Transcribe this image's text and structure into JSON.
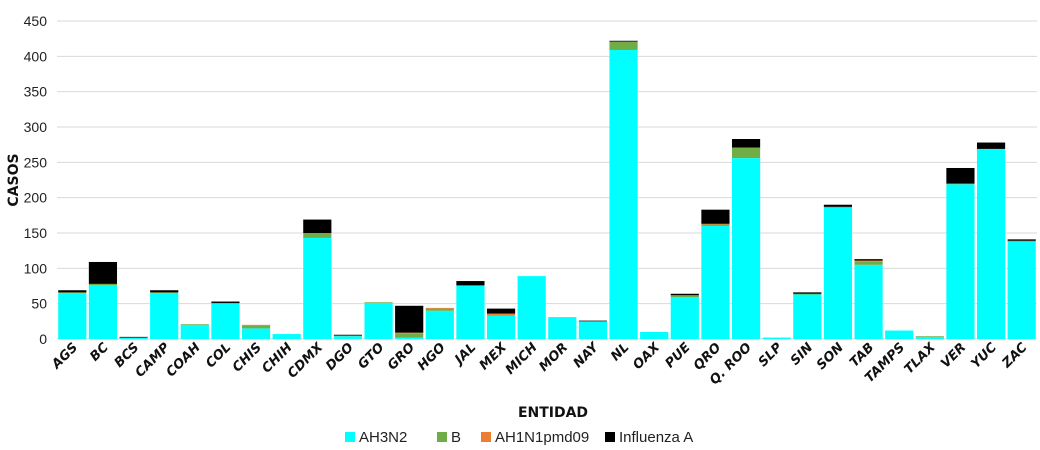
{
  "chart_data": {
    "type": "bar",
    "stacked": true,
    "title": "",
    "xlabel": "ENTIDAD",
    "ylabel": "CASOS",
    "ylim": [
      0,
      450
    ],
    "yticks": [
      0,
      50,
      100,
      150,
      200,
      250,
      300,
      350,
      400,
      450
    ],
    "grid": true,
    "legend_position": "bottom",
    "categories": [
      "AGS",
      "BC",
      "BCS",
      "CAMP",
      "COAH",
      "COL",
      "CHIS",
      "CHIH",
      "CDMX",
      "DGO",
      "GTO",
      "GRO",
      "HGO",
      "JAL",
      "MEX",
      "MICH",
      "MOR",
      "NAY",
      "NL",
      "OAX",
      "PUE",
      "QRO",
      "Q. ROO",
      "SLP",
      "SIN",
      "SON",
      "TAB",
      "TAMPS",
      "TLAX",
      "VER",
      "YUC",
      "ZAC"
    ],
    "series": [
      {
        "name": "AH3N2",
        "color": "#00FFFF",
        "values": [
          65,
          76,
          2,
          65,
          20,
          50,
          15,
          7,
          143,
          4,
          51,
          2,
          40,
          75,
          33,
          89,
          31,
          25,
          409,
          10,
          59,
          160,
          256,
          2,
          63,
          186,
          105,
          12,
          3,
          219,
          269,
          138
        ]
      },
      {
        "name": "B",
        "color": "#70AD47",
        "values": [
          1,
          2,
          0,
          1,
          1,
          1,
          4,
          0,
          7,
          1,
          1,
          6,
          3,
          1,
          1,
          0,
          0,
          0,
          12,
          0,
          3,
          2,
          15,
          0,
          1,
          1,
          5,
          0,
          1,
          1,
          0,
          1
        ]
      },
      {
        "name": "AH1N1pmd09",
        "color": "#ED7D31",
        "values": [
          0,
          0,
          0,
          0,
          0,
          0,
          1,
          0,
          0,
          0,
          0,
          1,
          1,
          0,
          2,
          0,
          0,
          0,
          0,
          0,
          0,
          1,
          0,
          0,
          0,
          0,
          1,
          0,
          0,
          0,
          0,
          0
        ]
      },
      {
        "name": "Influenza A",
        "color": "#000000",
        "values": [
          3,
          31,
          1,
          3,
          0,
          2,
          0,
          0,
          19,
          1,
          0,
          38,
          0,
          6,
          7,
          0,
          0,
          1,
          1,
          0,
          2,
          20,
          12,
          0,
          2,
          3,
          2,
          0,
          0,
          22,
          9,
          2
        ]
      }
    ]
  }
}
